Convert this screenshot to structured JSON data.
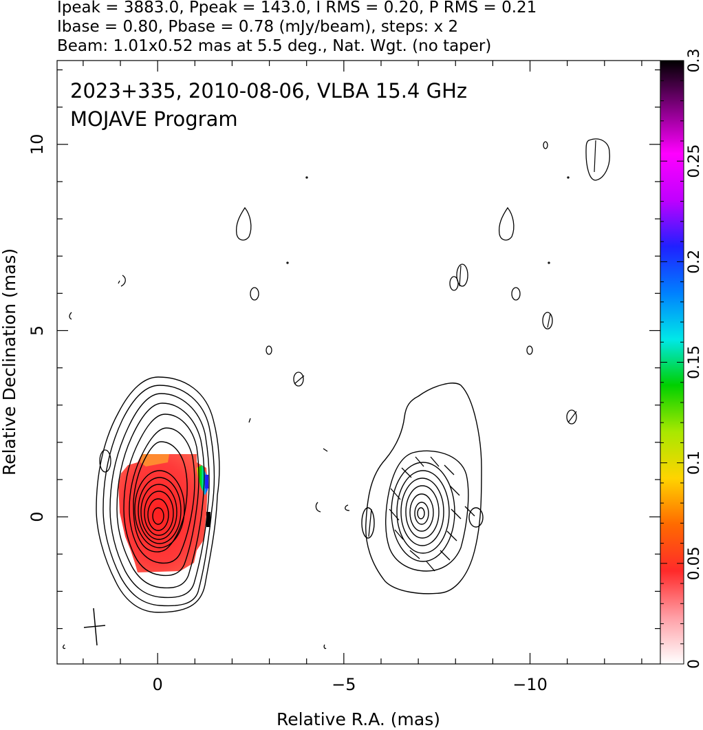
{
  "header": {
    "line1": "Ipeak = 3883.0, Ppeak = 143.0, I RMS = 0.20, P RMS = 0.21",
    "line2": "Ibase = 0.80, Pbase = 0.78 (mJy/beam), steps: x 2",
    "line3": "Beam: 1.01x0.52 mas at 5.5 deg., Nat. Wgt. (no taper)"
  },
  "annotation": {
    "line1": "2023+335, 2010-08-06, VLBA 15.4 GHz",
    "line2": "MOJAVE Program"
  },
  "colorbar": {
    "stops": [
      "#ffffff",
      "#ff9fa6",
      "#ff2a2a",
      "#ff6a00",
      "#ffd400",
      "#a8e800",
      "#00d000",
      "#00e8e8",
      "#0080ff",
      "#2020ff",
      "#c000ff",
      "#ff00ff",
      "#800080",
      "#000000"
    ],
    "ticks": [
      {
        "value": 0,
        "label": "0"
      },
      {
        "value": 0.05,
        "label": "0.05"
      },
      {
        "value": 0.1,
        "label": "0.1"
      },
      {
        "value": 0.15,
        "label": "0.15"
      },
      {
        "value": 0.2,
        "label": "0.2"
      },
      {
        "value": 0.25,
        "label": "0.25"
      },
      {
        "value": 0.3,
        "label": "0.3"
      }
    ]
  },
  "chart_data": {
    "type": "contour",
    "xlabel": "Relative R.A. (mas)",
    "ylabel": "Relative Declination (mas)",
    "xlim": [
      2.7,
      -13.5
    ],
    "ylim": [
      -3.95,
      12.25
    ],
    "xticks": [
      {
        "value": 0,
        "label": "0"
      },
      {
        "value": -5,
        "label": "−5"
      },
      {
        "value": -10,
        "label": "−10"
      }
    ],
    "yticks": [
      {
        "value": 0,
        "label": "0"
      },
      {
        "value": 5,
        "label": "5"
      },
      {
        "value": 10,
        "label": "10"
      }
    ],
    "total_intensity_peak": {
      "x": 0,
      "y": 0
    },
    "polarization_image_peak": {
      "x": -7.2,
      "y": 0.2
    },
    "contour_levels_mJy_per_beam": [
      0.8,
      1.6,
      3.2,
      6.4,
      12.8,
      25.6,
      51.2,
      102.4,
      204.8,
      409.6,
      819.2,
      1638.4,
      3276.8
    ],
    "beam": {
      "major_mas": 1.01,
      "minor_mas": 0.52,
      "pa_deg": 5.5
    }
  }
}
